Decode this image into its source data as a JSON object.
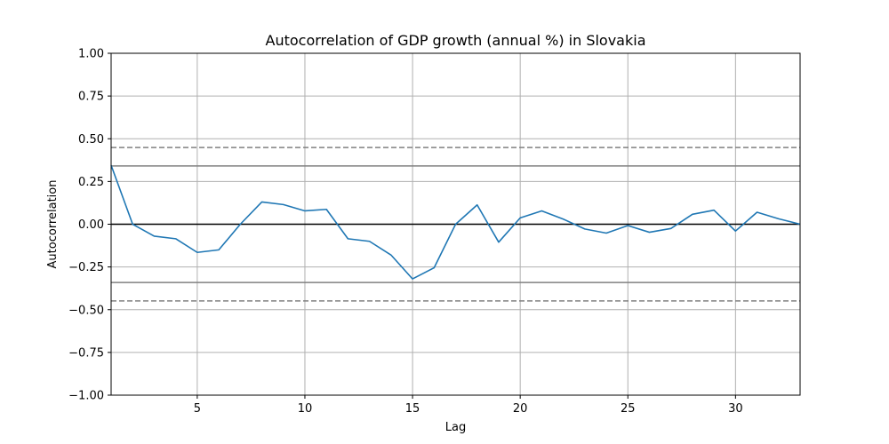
{
  "chart_data": {
    "type": "line",
    "title": "Autocorrelation of GDP growth (annual %) in Slovakia",
    "xlabel": "Lag",
    "ylabel": "Autocorrelation",
    "xlim": [
      1,
      33
    ],
    "ylim": [
      -1.0,
      1.0
    ],
    "xticks": [
      5,
      10,
      15,
      20,
      25,
      30
    ],
    "xtick_labels": [
      "5",
      "10",
      "15",
      "20",
      "25",
      "30"
    ],
    "yticks": [
      -1.0,
      -0.75,
      -0.5,
      -0.25,
      0.0,
      0.25,
      0.5,
      0.75,
      1.0
    ],
    "ytick_labels": [
      "−1.00",
      "−0.75",
      "−0.50",
      "−0.25",
      "0.00",
      "0.25",
      "0.50",
      "0.75",
      "1.00"
    ],
    "grid": true,
    "series": [
      {
        "x": [
          1,
          2,
          3,
          4,
          5,
          6,
          7,
          8,
          9,
          10,
          11,
          12,
          13,
          14,
          15,
          16,
          17,
          18,
          19,
          20,
          21,
          22,
          23,
          24,
          25,
          26,
          27,
          28,
          29,
          30,
          31,
          32,
          33
        ],
        "values": [
          0.345,
          0.0,
          -0.07,
          -0.085,
          -0.165,
          -0.15,
          0.0,
          0.13,
          0.115,
          0.078,
          0.087,
          -0.085,
          -0.1,
          -0.18,
          -0.32,
          -0.255,
          0.0,
          0.113,
          -0.105,
          0.037,
          0.078,
          0.03,
          -0.028,
          -0.052,
          -0.008,
          -0.047,
          -0.025,
          0.058,
          0.082,
          -0.04,
          0.07,
          0.032,
          0.0
        ],
        "color": "#1f77b4"
      }
    ],
    "reference_lines": [
      {
        "y": 0.0,
        "style": "solid",
        "color": "#000000"
      },
      {
        "y": 0.341,
        "style": "solid",
        "color": "#808080"
      },
      {
        "y": -0.341,
        "style": "solid",
        "color": "#808080"
      },
      {
        "y": 0.449,
        "style": "dashed",
        "color": "#808080"
      },
      {
        "y": -0.449,
        "style": "dashed",
        "color": "#808080"
      }
    ]
  }
}
